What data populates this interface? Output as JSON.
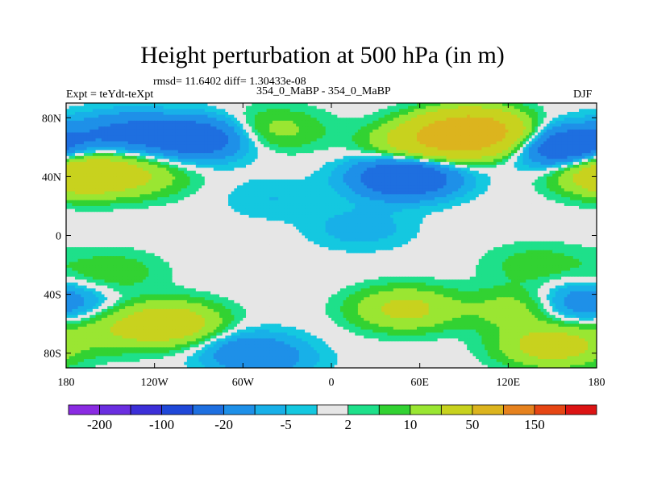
{
  "header": {
    "title": "Height perturbation at 500 hPa (in m)",
    "stats": "rmsd= 11.6402 diff= 1.30433e-08",
    "left_label": "Expt = teYdt-teXpt",
    "center_label": "354_0_MaBP - 354_0_MaBP",
    "right_label": "DJF"
  },
  "chart_data": {
    "type": "heatmap",
    "title": "Height perturbation at 500 hPa (in m)",
    "variable": "Height perturbation",
    "units": "m",
    "level": "500 hPa",
    "season": "DJF",
    "xlim": [
      -180,
      180
    ],
    "ylim": [
      -90,
      90
    ],
    "x_ticks": [
      {
        "value": -180,
        "label": "180"
      },
      {
        "value": -120,
        "label": "120W"
      },
      {
        "value": -60,
        "label": "60W"
      },
      {
        "value": 0,
        "label": "0"
      },
      {
        "value": 60,
        "label": "60E"
      },
      {
        "value": 120,
        "label": "120E"
      },
      {
        "value": 180,
        "label": "180"
      }
    ],
    "y_ticks": [
      {
        "value": 80,
        "label": "80N"
      },
      {
        "value": 40,
        "label": "40N"
      },
      {
        "value": 0,
        "label": "0"
      },
      {
        "value": -40,
        "label": "40S"
      },
      {
        "value": -80,
        "label": "80S"
      }
    ],
    "color_levels": [
      -200,
      -150,
      -100,
      -50,
      -20,
      -10,
      -5,
      -2,
      2,
      5,
      10,
      20,
      50,
      100,
      150,
      200
    ],
    "colorbar_labels": [
      {
        "index": 1,
        "label": "-200"
      },
      {
        "index": 3,
        "label": "-100"
      },
      {
        "index": 5,
        "label": "-20"
      },
      {
        "index": 7,
        "label": "-5"
      },
      {
        "index": 9,
        "label": "2"
      },
      {
        "index": 11,
        "label": "10"
      },
      {
        "index": 13,
        "label": "50"
      },
      {
        "index": 15,
        "label": "150"
      }
    ],
    "colors": [
      "#8a2be2",
      "#6a2ee0",
      "#3c2fd8",
      "#1f48d8",
      "#1e6fe0",
      "#1e90e8",
      "#18b0e8",
      "#14c8e0",
      "#e6e6e6",
      "#1ee08a",
      "#32d232",
      "#9ae632",
      "#c8d21e",
      "#dcb41e",
      "#e6821e",
      "#e64614",
      "#dc1414"
    ],
    "anomaly_features": [
      {
        "lon": -140,
        "lat": 70,
        "value": -22
      },
      {
        "lon": -90,
        "lat": 66,
        "value": -35
      },
      {
        "lon": -170,
        "lat": 42,
        "value": 45
      },
      {
        "lon": -130,
        "lat": 40,
        "value": 15
      },
      {
        "lon": -40,
        "lat": 72,
        "value": 14
      },
      {
        "lon": 60,
        "lat": 62,
        "value": 28
      },
      {
        "lon": 95,
        "lat": 70,
        "value": 90
      },
      {
        "lon": 50,
        "lat": 40,
        "value": -45
      },
      {
        "lon": 160,
        "lat": 60,
        "value": -40
      },
      {
        "lon": 20,
        "lat": 5,
        "value": -8
      },
      {
        "lon": -40,
        "lat": 25,
        "value": -5
      },
      {
        "lon": -150,
        "lat": -25,
        "value": 9
      },
      {
        "lon": 140,
        "lat": -20,
        "value": 8
      },
      {
        "lon": 50,
        "lat": -50,
        "value": 25
      },
      {
        "lon": 130,
        "lat": -50,
        "value": 20
      },
      {
        "lon": -110,
        "lat": -60,
        "value": 35
      },
      {
        "lon": -150,
        "lat": -65,
        "value": 12
      },
      {
        "lon": -60,
        "lat": -78,
        "value": -14
      },
      {
        "lon": -40,
        "lat": -85,
        "value": -9
      },
      {
        "lon": 150,
        "lat": -75,
        "value": 30
      },
      {
        "lon": 150,
        "lat": -50,
        "value": -10
      },
      {
        "lon": 175,
        "lat": -45,
        "value": -15
      }
    ]
  }
}
